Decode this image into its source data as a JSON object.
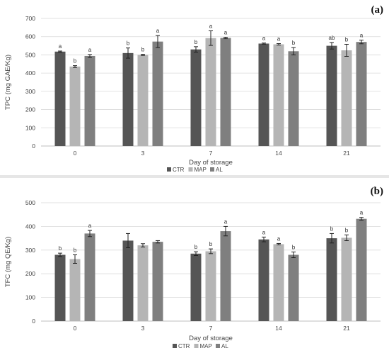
{
  "chart_data": [
    {
      "type": "bar",
      "panel_label": "(a)",
      "ylabel": "TPC (mg GAE/Kg)",
      "xlabel": "Day of storage",
      "categories": [
        "0",
        "3",
        "7",
        "14",
        "21"
      ],
      "ylim": [
        0,
        700
      ],
      "yticks": [
        0,
        100,
        200,
        300,
        400,
        500,
        600,
        700
      ],
      "grid": true,
      "legend_position": "bottom",
      "colors": {
        "CTR": "#555555",
        "MAP": "#b5b5b5",
        "AL": "#7f7f7f"
      },
      "series": [
        {
          "name": "CTR",
          "values": [
            518,
            510,
            530,
            562,
            550
          ],
          "errors": [
            3,
            28,
            15,
            3,
            18
          ],
          "letters": [
            "a",
            "b",
            "b",
            "a",
            "ab"
          ]
        },
        {
          "name": "MAP",
          "values": [
            436,
            500,
            592,
            558,
            525
          ],
          "errors": [
            5,
            3,
            40,
            4,
            33
          ],
          "letters": [
            "b",
            "b",
            "a",
            "a",
            "b"
          ]
        },
        {
          "name": "AL",
          "values": [
            494,
            573,
            593,
            520,
            571
          ],
          "errors": [
            8,
            33,
            4,
            20,
            10
          ],
          "letters": [
            "a",
            "a",
            "a",
            "b",
            "a"
          ]
        }
      ]
    },
    {
      "type": "bar",
      "panel_label": "(b)",
      "ylabel": "TFC (mg QE/Kg)",
      "xlabel": "Day of storage",
      "categories": [
        "0",
        "3",
        "7",
        "14",
        "21"
      ],
      "ylim": [
        0,
        500
      ],
      "yticks": [
        0,
        100,
        200,
        300,
        400,
        500
      ],
      "grid": true,
      "legend_position": "bottom",
      "colors": {
        "CTR": "#555555",
        "MAP": "#b5b5b5",
        "AL": "#7f7f7f"
      },
      "series": [
        {
          "name": "CTR",
          "values": [
            280,
            340,
            285,
            345,
            350
          ],
          "errors": [
            7,
            30,
            8,
            10,
            20
          ],
          "letters": [
            "b",
            "",
            "b",
            "a",
            "b"
          ]
        },
        {
          "name": "MAP",
          "values": [
            262,
            320,
            295,
            325,
            352
          ],
          "errors": [
            18,
            7,
            10,
            3,
            12
          ],
          "letters": [
            "b",
            "",
            "b",
            "a",
            "b"
          ]
        },
        {
          "name": "AL",
          "values": [
            370,
            335,
            380,
            280,
            432
          ],
          "errors": [
            13,
            5,
            20,
            12,
            6
          ],
          "letters": [
            "a",
            "",
            "a",
            "b",
            "a"
          ]
        }
      ]
    }
  ]
}
